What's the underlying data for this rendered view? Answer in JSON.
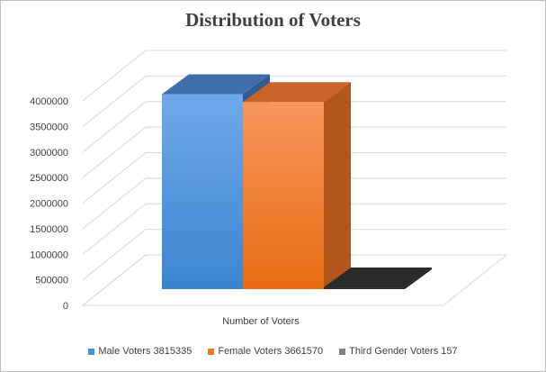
{
  "chart_data": {
    "type": "bar",
    "title": "Distribution of Voters",
    "xlabel": "Number of Voters",
    "ylabel": "",
    "categories": [
      "Number of Voters"
    ],
    "series": [
      {
        "name": "Male Voters 3815335",
        "values": [
          3815335
        ],
        "color": "#4a90d9"
      },
      {
        "name": "Female Voters 3661570",
        "values": [
          3661570
        ],
        "color": "#f07820"
      },
      {
        "name": "Third Gender Voters 157",
        "values": [
          157
        ],
        "color": "#7f7f7f"
      }
    ],
    "ylim": [
      0,
      4000000
    ],
    "yticks": [
      "0",
      "500000",
      "1000000",
      "1500000",
      "2000000",
      "2500000",
      "3000000",
      "3500000",
      "4000000"
    ],
    "grid": true,
    "legend": "bottom",
    "style": "3d-column"
  }
}
